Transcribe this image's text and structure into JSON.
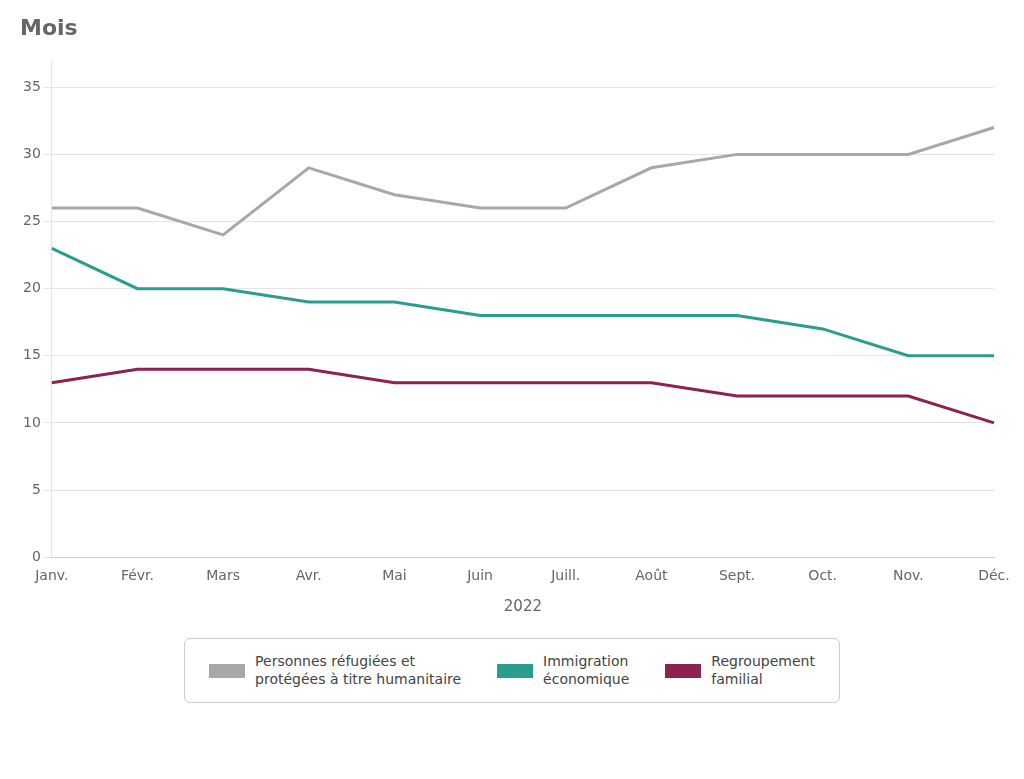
{
  "chart_data": {
    "type": "line",
    "title": "Mois",
    "xlabel": "2022",
    "categories": [
      "Janv.",
      "Févr.",
      "Mars",
      "Avr.",
      "Mai",
      "Juin",
      "Juill.",
      "Août",
      "Sept.",
      "Oct.",
      "Nov.",
      "Déc."
    ],
    "series": [
      {
        "name": "Personnes réfugiées et\nprotégées à titre humanitaire",
        "color": "#a8a8a8",
        "values": [
          26,
          26,
          24,
          29,
          27,
          26,
          26,
          29,
          30,
          30,
          30,
          32
        ]
      },
      {
        "name": "Immigration\néconomique",
        "color": "#2a9d8f",
        "values": [
          23,
          20,
          20,
          19,
          19,
          18,
          18,
          18,
          18,
          17,
          15,
          15
        ]
      },
      {
        "name": "Regroupement\nfamilial",
        "color": "#8b2252",
        "values": [
          13,
          14,
          14,
          14,
          13,
          13,
          13,
          13,
          12,
          12,
          12,
          10
        ]
      }
    ],
    "ylim": [
      0,
      37
    ],
    "yticks": [
      0,
      5,
      10,
      15,
      20,
      25,
      30,
      35
    ],
    "grid": true,
    "legend": "bottom"
  }
}
